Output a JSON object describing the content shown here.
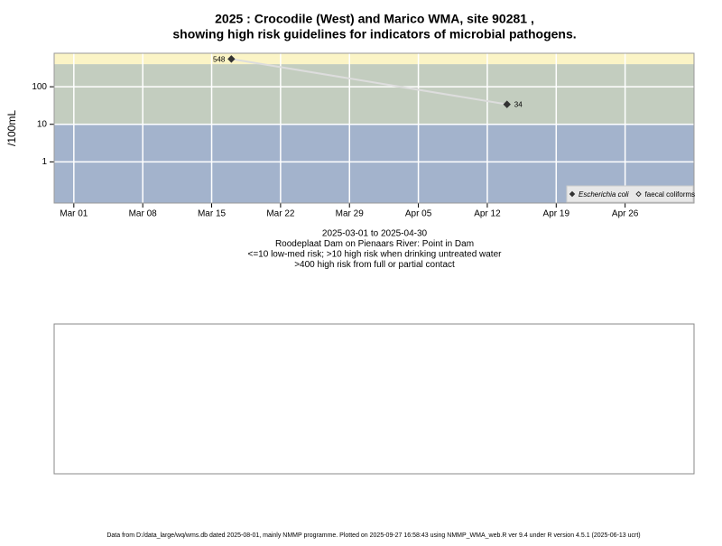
{
  "chart_data": {
    "type": "line",
    "title": "2025 : Crocodile (West) and Marico WMA, site 90281 ,",
    "title_line2": "showing high risk guidelines for indicators of microbial pathogens.",
    "y_label": "/100mL",
    "subtitle_lines": [
      "2025-03-01 to 2025-04-30",
      "Roodeplaat Dam on Pienaars River: Point in Dam",
      "<=10 low-med risk; >10 high risk when drinking untreated water",
      ">400 high risk from full or partial contact"
    ],
    "footer": "Data from D:/data_large/wq/wms.db dated 2025-08-01, mainly NMMP programme. Plotted on 2025-09-27 16:58:43 using NMMP_WMA_web.R ver 9.4 under R version 4.5.1 (2025-06-13 ucrt)",
    "log_y": true,
    "grid": true,
    "legend_position": "bottom-right",
    "guidelines": [
      10,
      400
    ],
    "band_colors": [
      "#a3b3cc",
      "#c3cdbf",
      "#fbf4c6"
    ],
    "x": [
      "2025-03-17",
      "2025-04-14"
    ],
    "series": [
      {
        "name": "Escherichia coli",
        "color": "#333333",
        "marker": "filled-diamond",
        "values": [
          548,
          34
        ]
      },
      {
        "name": "faecal coliforms",
        "color": "#333333",
        "marker": "open-diamond",
        "values": [
          null,
          null
        ]
      }
    ],
    "line_color": "#dddddd",
    "xlim": [
      "2025-02-27",
      "2025-05-03"
    ],
    "xticks": [
      {
        "value": "2025-03-01",
        "label": "Mar 01"
      },
      {
        "value": "2025-03-08",
        "label": "Mar 08"
      },
      {
        "value": "2025-03-15",
        "label": "Mar 15"
      },
      {
        "value": "2025-03-22",
        "label": "Mar 22"
      },
      {
        "value": "2025-03-29",
        "label": "Mar 29"
      },
      {
        "value": "2025-04-05",
        "label": "Apr 05"
      },
      {
        "value": "2025-04-12",
        "label": "Apr 12"
      },
      {
        "value": "2025-04-19",
        "label": "Apr 19"
      },
      {
        "value": "2025-04-26",
        "label": "Apr 26"
      }
    ],
    "ylim": [
      0.08,
      780
    ],
    "yticks": [
      1,
      10,
      100
    ]
  }
}
